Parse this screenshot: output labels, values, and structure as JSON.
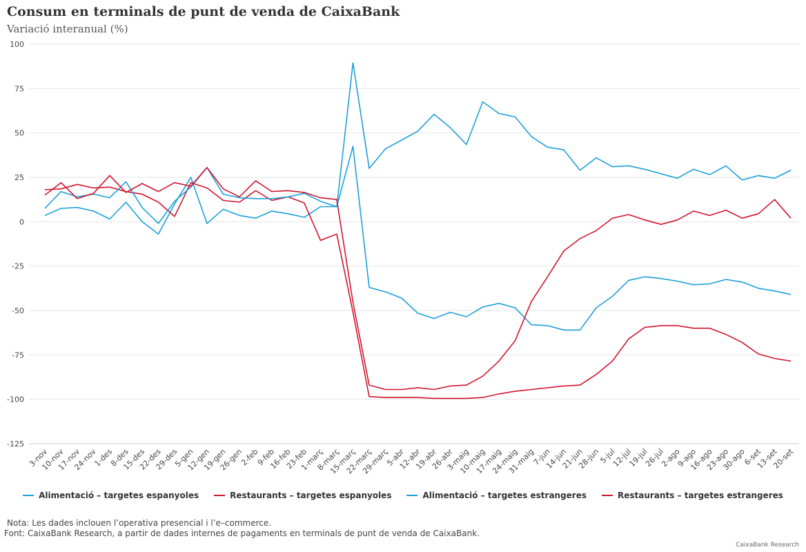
{
  "chart_data": {
    "type": "line",
    "title": "Consum en terminals de punt de venda de CaixaBank",
    "subtitle": "Variació interanual (%)",
    "xlabel": "",
    "ylabel": "",
    "ylim": [
      -125,
      100
    ],
    "yticks": [
      100,
      75,
      50,
      25,
      0,
      -25,
      -50,
      -75,
      -100,
      -125
    ],
    "grid": true,
    "legend_position": "bottom",
    "categories": [
      "3-nov",
      "10-nov",
      "17-nov",
      "24-nov",
      "1-des",
      "8-des",
      "15-des",
      "22-des",
      "29-des",
      "5-gen",
      "12-gen",
      "19-gen",
      "26-gen",
      "2-feb",
      "9-feb",
      "16-feb",
      "23-feb",
      "1-març",
      "8-març",
      "15-març",
      "22-març",
      "29-març",
      "5-abr",
      "12-abr",
      "19-abr",
      "26-abr",
      "3-maig",
      "10-maig",
      "17-maig",
      "24-maig",
      "31-maig",
      "7-jun",
      "14-jun",
      "21-jun",
      "28-jun",
      "5-jul",
      "12-jul",
      "19-jul",
      "26-jul",
      "2-ago",
      "9-ago",
      "16-ago",
      "23-ago",
      "30-ago",
      "6-set",
      "13-set",
      "20-set"
    ],
    "series": [
      {
        "name": "Alimentació – targetes espanyoles",
        "color": "#1a9fd9",
        "values": [
          3.5,
          7.5,
          8,
          6,
          1.5,
          11,
          0,
          -7,
          10,
          25,
          -1,
          7,
          3.5,
          2,
          6,
          4.5,
          2.5,
          8.5,
          8.5,
          42.5,
          -37,
          -39.5,
          -43,
          -51.5,
          -54.5,
          -51,
          -53.5,
          -48,
          -46,
          -48.5,
          -58,
          -58.5,
          -61,
          -61,
          -48.5,
          -42,
          -33,
          -31,
          -32,
          -33.5,
          -35.5,
          -35,
          -32.5,
          -34,
          -37.5,
          -39,
          -41
        ]
      },
      {
        "name": "Restaurants – targetes espanyoles",
        "color": "#d0142c",
        "values": [
          18,
          18.5,
          21,
          19,
          19.5,
          17,
          15.5,
          11,
          3,
          22,
          19,
          12,
          11,
          17.5,
          12,
          14,
          10.5,
          -10.5,
          -7,
          -51,
          -98.5,
          -99,
          -99,
          -99,
          -99.5,
          -99.5,
          -99.5,
          -99,
          -97,
          -95.5,
          -94.5,
          -93.5,
          -92.5,
          -92,
          -86,
          -78.5,
          -66,
          -59.5,
          -58.5,
          -58.5,
          -60,
          -60,
          -63.5,
          -68,
          -74.5,
          -77,
          -78.5
        ]
      },
      {
        "name": "Alimentació – targetes estrangeres",
        "color": "#1a9fd9",
        "values": [
          7.5,
          17,
          14,
          15.5,
          13.5,
          22.5,
          8,
          -1,
          11.5,
          19.5,
          30.5,
          15.5,
          13.5,
          13,
          13,
          14,
          16,
          11.5,
          8.5,
          89.5,
          30,
          41,
          46,
          51,
          60.5,
          53,
          43.5,
          67.5,
          61,
          59,
          48,
          42,
          40.5,
          29,
          36,
          31,
          31.5,
          29.5,
          27,
          24.5,
          29.5,
          26.5,
          31.5,
          23.5,
          26,
          24.5,
          29
        ]
      },
      {
        "name": "Restaurants – targetes estrangeres",
        "color": "#d0142c",
        "values": [
          15,
          22,
          13,
          16,
          26,
          16.5,
          21.5,
          17,
          22,
          20,
          30.5,
          18.5,
          14,
          23,
          17,
          17.5,
          16.5,
          13.5,
          12.5,
          -45.5,
          -92,
          -94.5,
          -94.5,
          -93.5,
          -94.5,
          -92.5,
          -92,
          -87,
          -78.5,
          -67,
          -45,
          -31,
          -16.5,
          -9.5,
          -5,
          2,
          4,
          1,
          -1.5,
          1,
          6,
          3.5,
          6.5,
          2,
          4.5,
          12.5,
          2
        ]
      }
    ]
  },
  "notes": {
    "note": "Nota: Les dades inclouen l’operativa presencial i l’e–commerce.",
    "source": "Font: CaixaBank Research, a partir de dades internes de pagaments en terminals de punt de venda de CaixaBank.",
    "credit": "CaixaBank Research"
  }
}
